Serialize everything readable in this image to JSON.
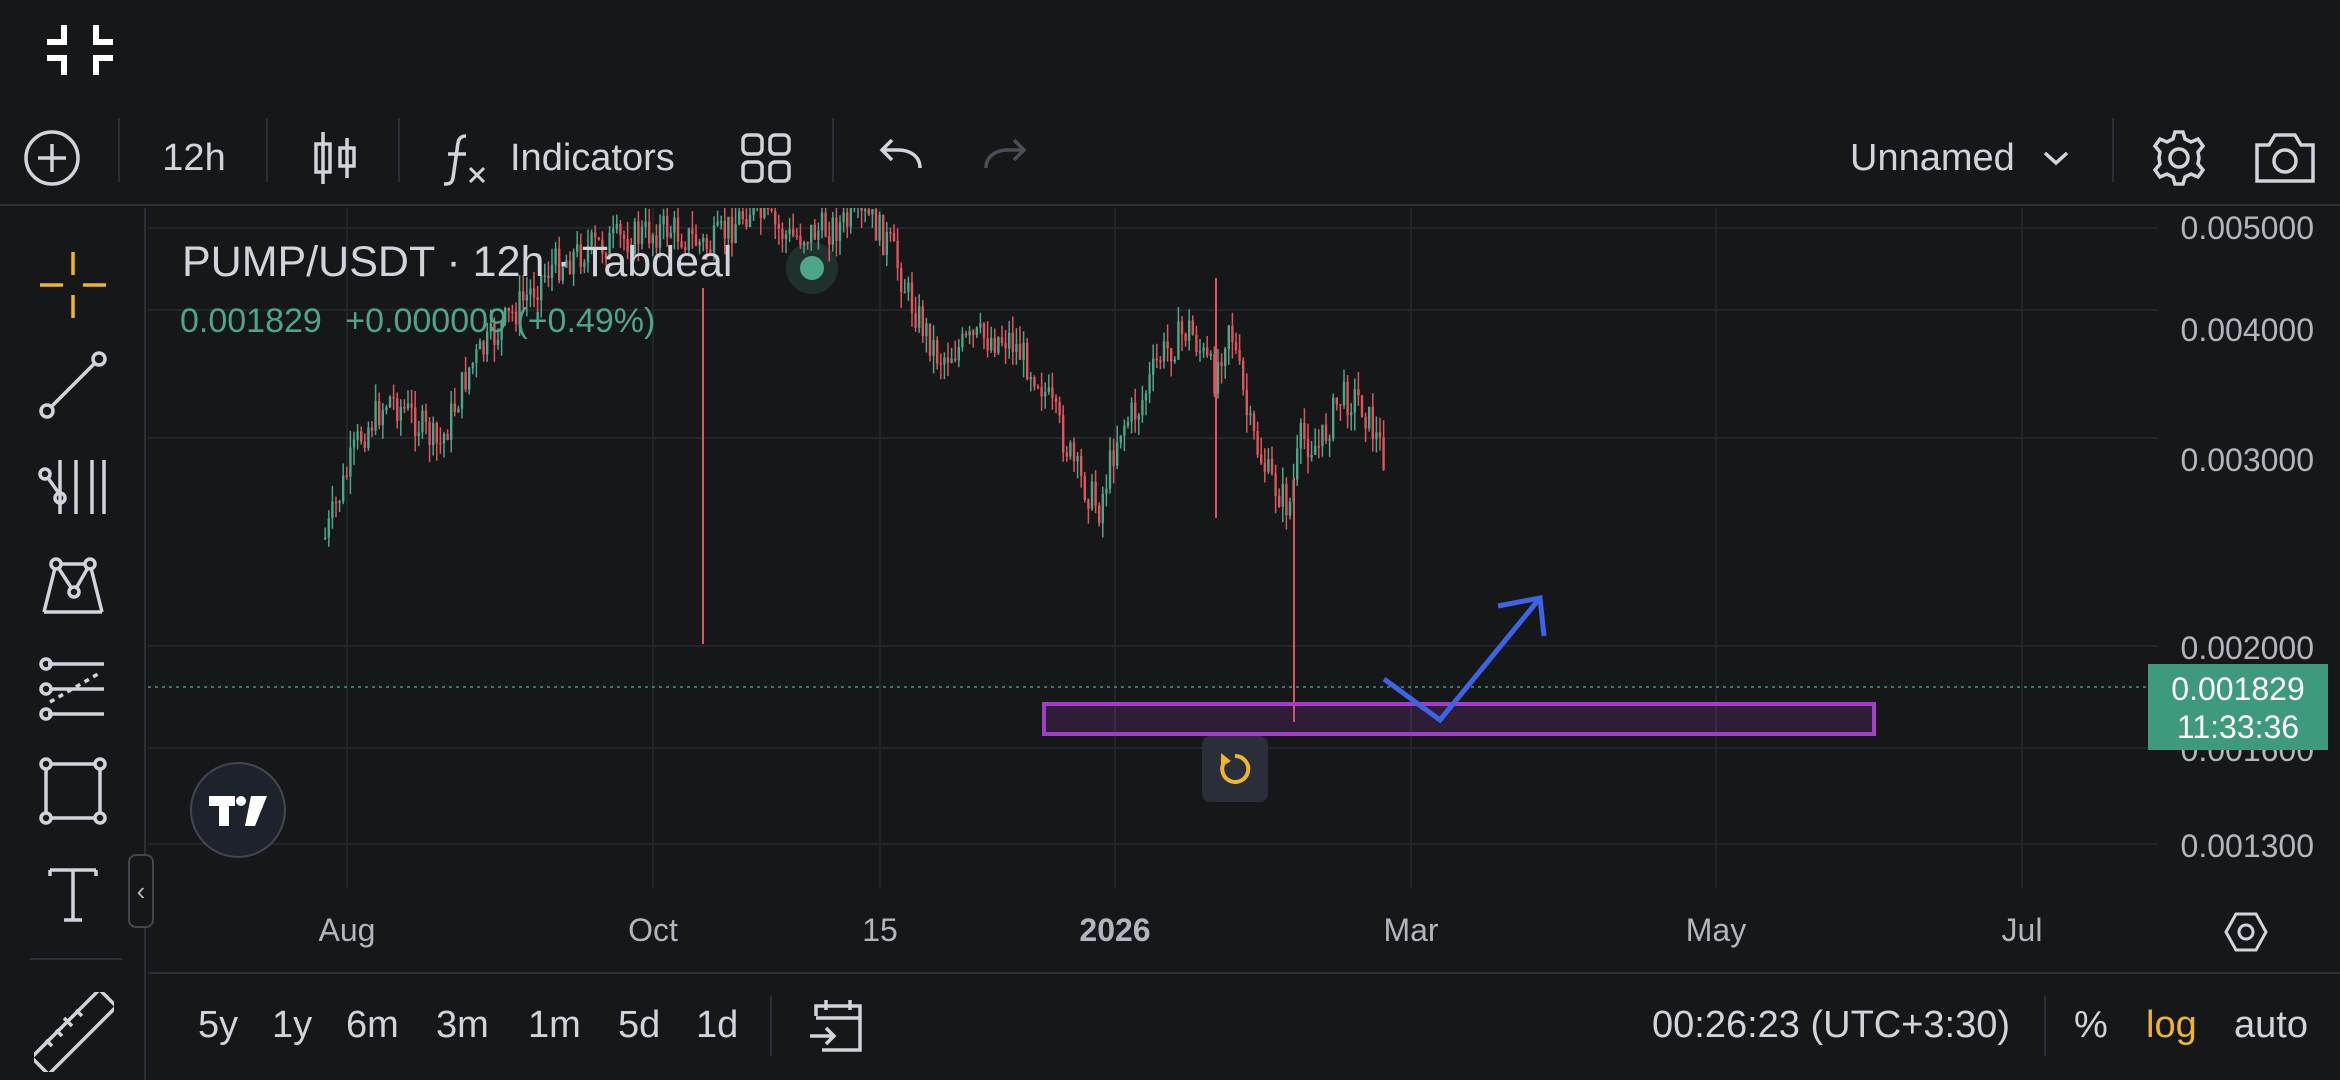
{
  "toolbar": {
    "interval": "12h",
    "indicators_label": "Indicators",
    "layout_name": "Unnamed"
  },
  "legend": {
    "title": "PUMP/USDT · 12h · Tabdeal",
    "last": "0.001829",
    "change": "+0.000009 (+0.49%)"
  },
  "price_axis": {
    "labels": [
      "0.005000",
      "0.004000",
      "0.003000",
      "0.002000",
      "0.001600",
      "0.001300"
    ],
    "current_price": "0.001829",
    "countdown": "11:33:36"
  },
  "time_axis": {
    "labels": [
      "Aug",
      "Oct",
      "15",
      "2026",
      "Mar",
      "May",
      "Jul"
    ]
  },
  "ranges": [
    "5y",
    "1y",
    "6m",
    "3m",
    "1m",
    "5d",
    "1d"
  ],
  "bottom": {
    "clock": "00:26:23 (UTC+3:30)",
    "percent": "%",
    "log": "log",
    "auto": "auto"
  },
  "colors": {
    "up": "#4ea58a",
    "down": "#e0555c",
    "accent": "#f0b42d",
    "zone": "#a23cc9",
    "arrow": "#3d63e6"
  },
  "icons": [
    "exit-fullscreen-icon",
    "add-icon",
    "candles-icon",
    "indicators-icon",
    "templates-icon",
    "undo-icon",
    "redo-icon",
    "chevron-down-icon",
    "settings-icon",
    "camera-icon",
    "crosshair-icon",
    "trend-line-icon",
    "fib-icon",
    "pattern-icon",
    "forecast-icon",
    "rectangle-icon",
    "text-icon",
    "ruler-icon",
    "calendar-goto-icon",
    "reset-icon",
    "tradingview-logo-icon",
    "chevron-left-icon",
    "chart-settings-icon"
  ]
}
